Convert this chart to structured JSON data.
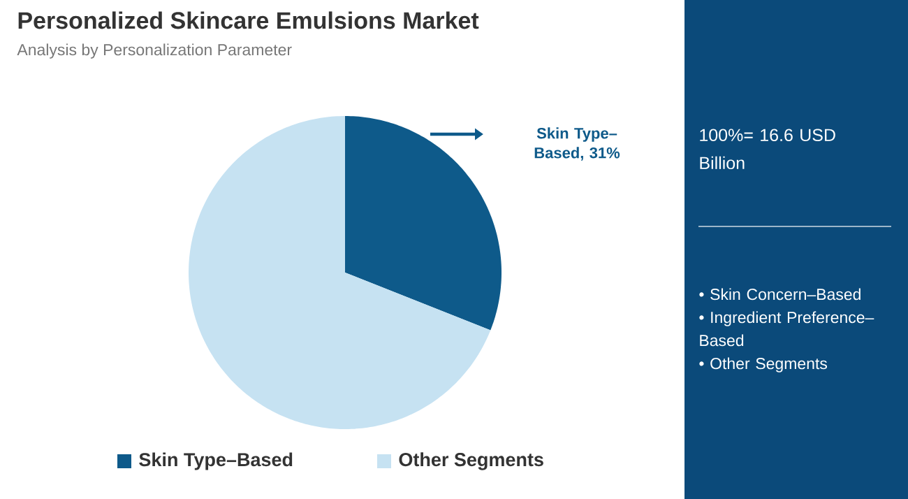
{
  "chart_data": {
    "type": "pie",
    "title": "Personalized Skincare Emulsions Market",
    "subtitle": "Analysis by Personalization Parameter",
    "categories": [
      "Skin Type–Based",
      "Other Segments"
    ],
    "values": [
      31,
      69
    ],
    "colors": [
      "#0e5a8a",
      "#c6e2f2"
    ],
    "value_labels": [
      "Skin Type–Based, 31%",
      null
    ],
    "legend": "bottom",
    "annotations": [
      "100%= 16.6 USD Billion",
      "• Skin Concern–Based",
      "• Ingredient Preference–Based",
      "• Other Segments"
    ]
  }
}
